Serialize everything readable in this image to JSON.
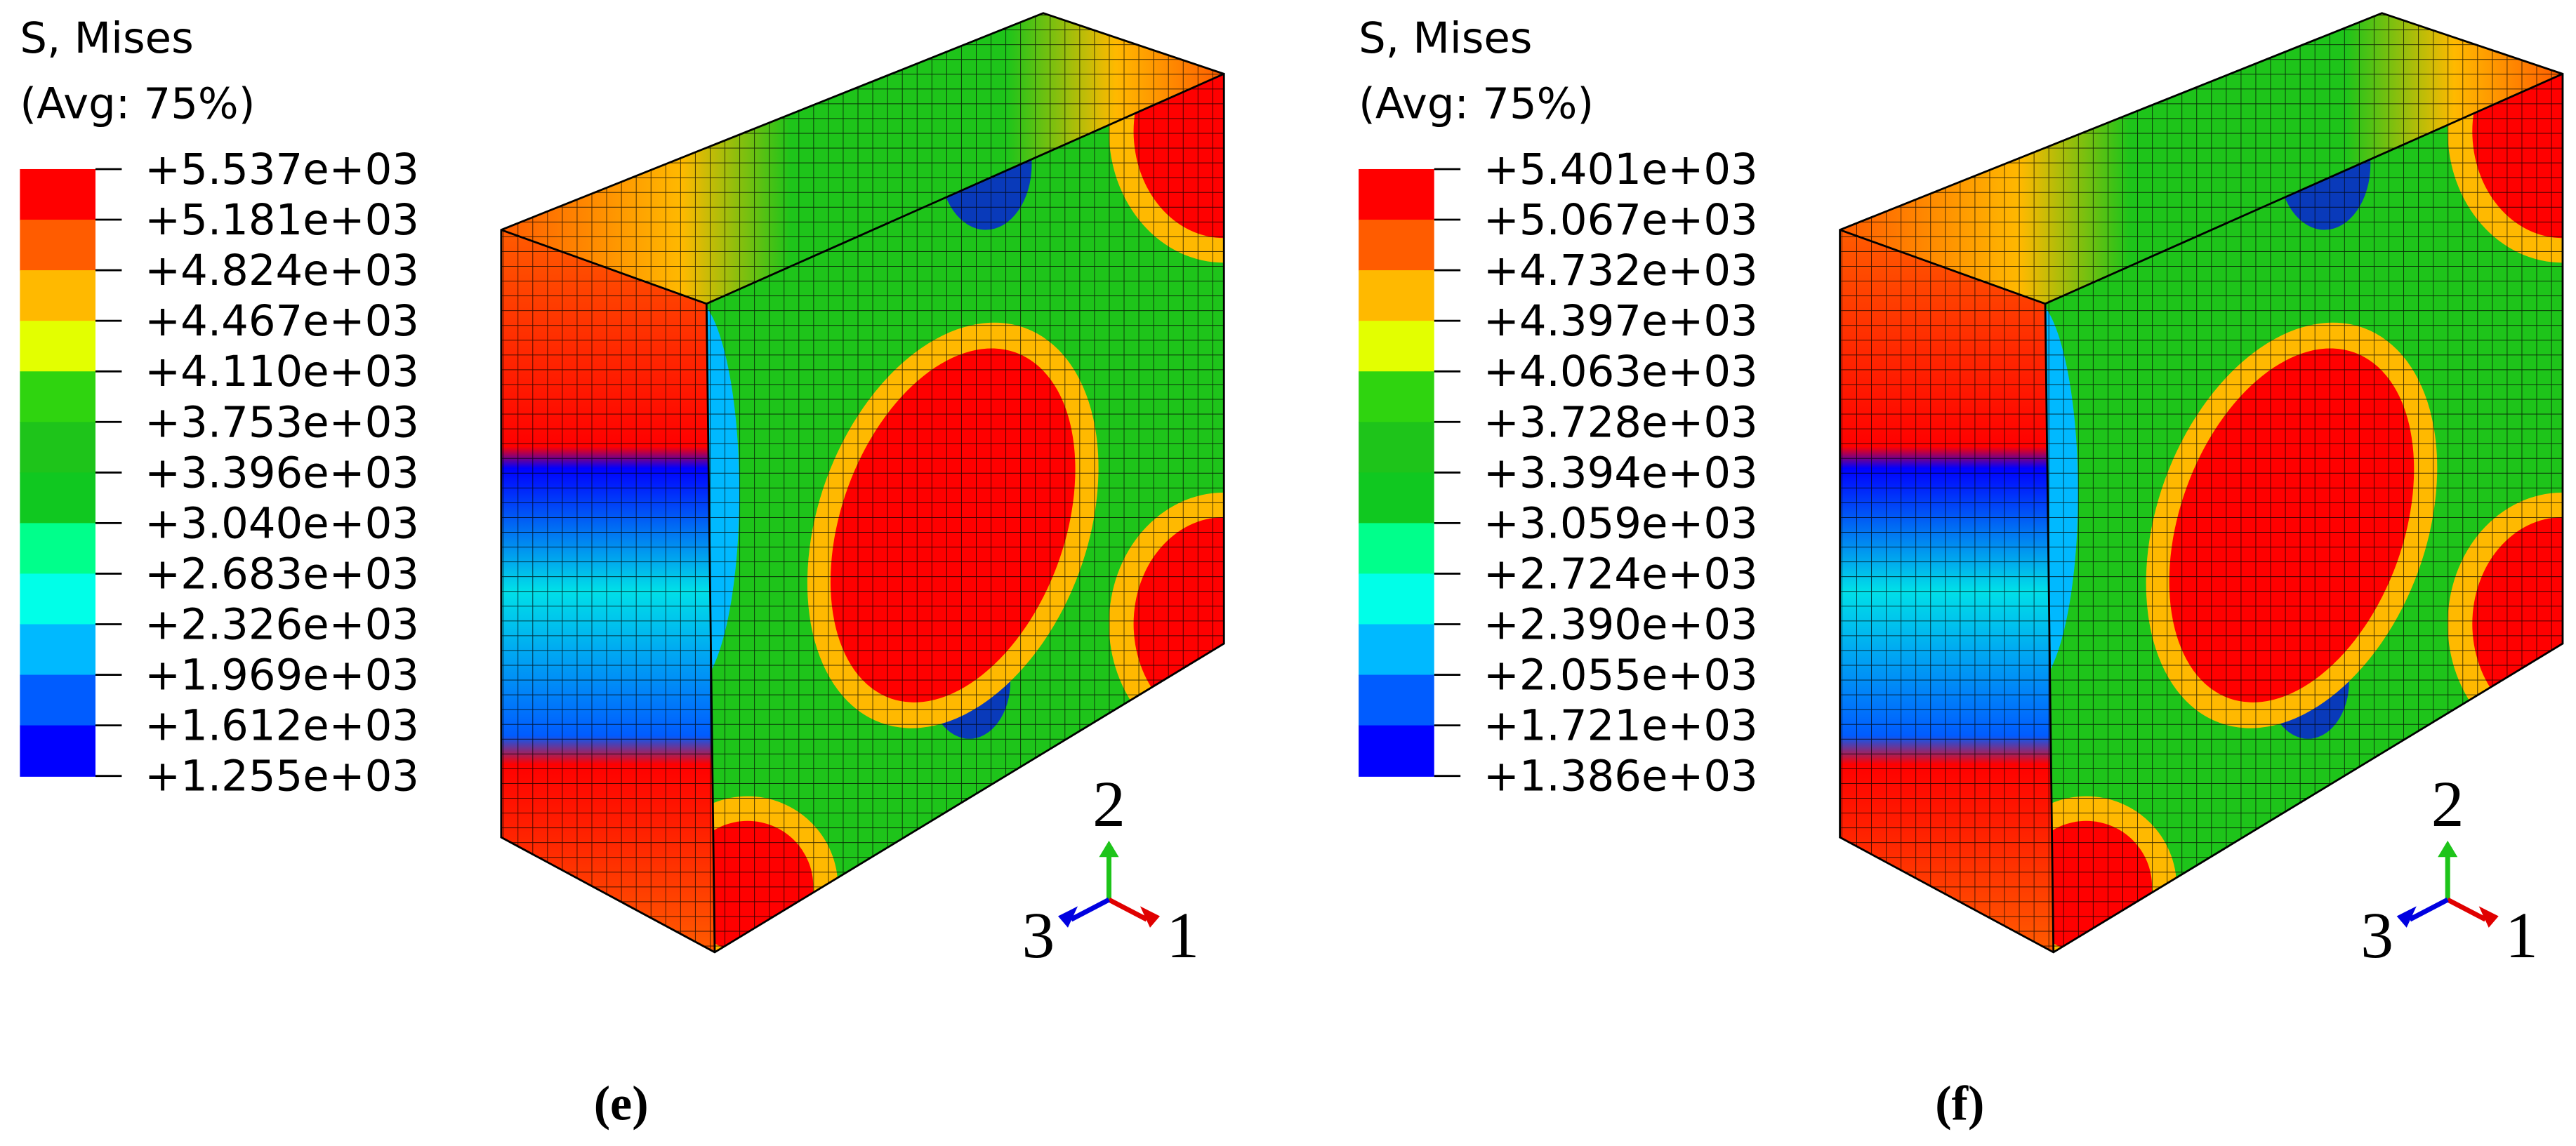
{
  "panels": [
    {
      "legend": {
        "title": "S, Mises",
        "subtitle": "(Avg: 75%)",
        "labels": [
          "+5.537e+03",
          "+5.181e+03",
          "+4.824e+03",
          "+4.467e+03",
          "+4.110e+03",
          "+3.753e+03",
          "+3.396e+03",
          "+3.040e+03",
          "+2.683e+03",
          "+2.326e+03",
          "+1.969e+03",
          "+1.612e+03",
          "+1.255e+03"
        ],
        "colors": [
          "#ff0000",
          "#ff5c00",
          "#ffb900",
          "#e3ff00",
          "#2fd40f",
          "#1ec41a",
          "#10c820",
          "#00ff8b",
          "#00ffe8",
          "#00b9ff",
          "#005cff",
          "#0000ff"
        ]
      },
      "axes": {
        "up": "2",
        "left": "3",
        "right": "1"
      },
      "caption": "(e)"
    },
    {
      "legend": {
        "title": "S, Mises",
        "subtitle": "(Avg: 75%)",
        "labels": [
          "+5.401e+03",
          "+5.067e+03",
          "+4.732e+03",
          "+4.397e+03",
          "+4.063e+03",
          "+3.728e+03",
          "+3.394e+03",
          "+3.059e+03",
          "+2.724e+03",
          "+2.390e+03",
          "+2.055e+03",
          "+1.721e+03",
          "+1.386e+03"
        ],
        "colors": [
          "#ff0000",
          "#ff5c00",
          "#ffb900",
          "#e3ff00",
          "#2fd40f",
          "#1ec41a",
          "#10c820",
          "#00ff8b",
          "#00ffe8",
          "#00b9ff",
          "#005cff",
          "#0000ff"
        ]
      },
      "axes": {
        "up": "2",
        "left": "3",
        "right": "1"
      },
      "caption": "(f)"
    }
  ]
}
